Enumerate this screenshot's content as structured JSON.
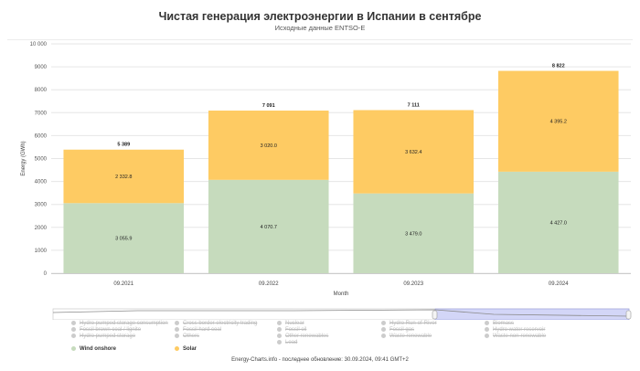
{
  "chart_data": {
    "type": "bar",
    "stacked": true,
    "title": "Чистая генерация электроэнергии в Испании в сентябре",
    "subtitle": "Исходные данные ENTSO-E",
    "xlabel": "Month",
    "ylabel": "Energy (GWh)",
    "ylim": [
      0,
      10000
    ],
    "yticks": [
      "0",
      "1000",
      "2000",
      "3000",
      "4000",
      "5000",
      "6000",
      "7000",
      "8000",
      "9000",
      "10 000"
    ],
    "grid": true,
    "categories": [
      "09.2021",
      "09.2022",
      "09.2023",
      "09.2024"
    ],
    "series": [
      {
        "name": "Wind onshore",
        "color": "#c6dbbd",
        "values": [
          3055.9,
          4070.7,
          3479.0,
          4427.0
        ],
        "labels": [
          "3 055.9",
          "4 070.7",
          "3 479.0",
          "4 427.0"
        ]
      },
      {
        "name": "Solar",
        "color": "#fecb63",
        "values": [
          2332.8,
          3020.0,
          3632.4,
          4395.2
        ],
        "labels": [
          "2 332.8",
          "3 020.0",
          "3 632.4",
          "4 395.2"
        ]
      }
    ],
    "totals": [
      "5 389",
      "7 091",
      "7 111",
      "8 822"
    ]
  },
  "legend": {
    "hidden": [
      "Hydro pumped storage consumption",
      "Cross border electricity trading",
      "Nuclear",
      "Hydro Run-of-River",
      "Biomass",
      "Fossil brown coal / lignite",
      "Fossil hard coal",
      "Fossil oil",
      "Fossil gas",
      "Hydro water reservoir",
      "Hydro pumped storage",
      "Others",
      "Other renewables",
      "Waste renewable",
      "Waste non-renewable",
      "",
      "",
      "Load",
      "",
      ""
    ],
    "active": [
      {
        "name": "Wind onshore",
        "color": "#c6dbbd"
      },
      {
        "name": "Solar",
        "color": "#fecb63"
      }
    ],
    "hidden_color": "#cccccc"
  },
  "footer": "Energy-Charts.info - последнее обновление: 30.09.2024, 09:41 GMT+2"
}
